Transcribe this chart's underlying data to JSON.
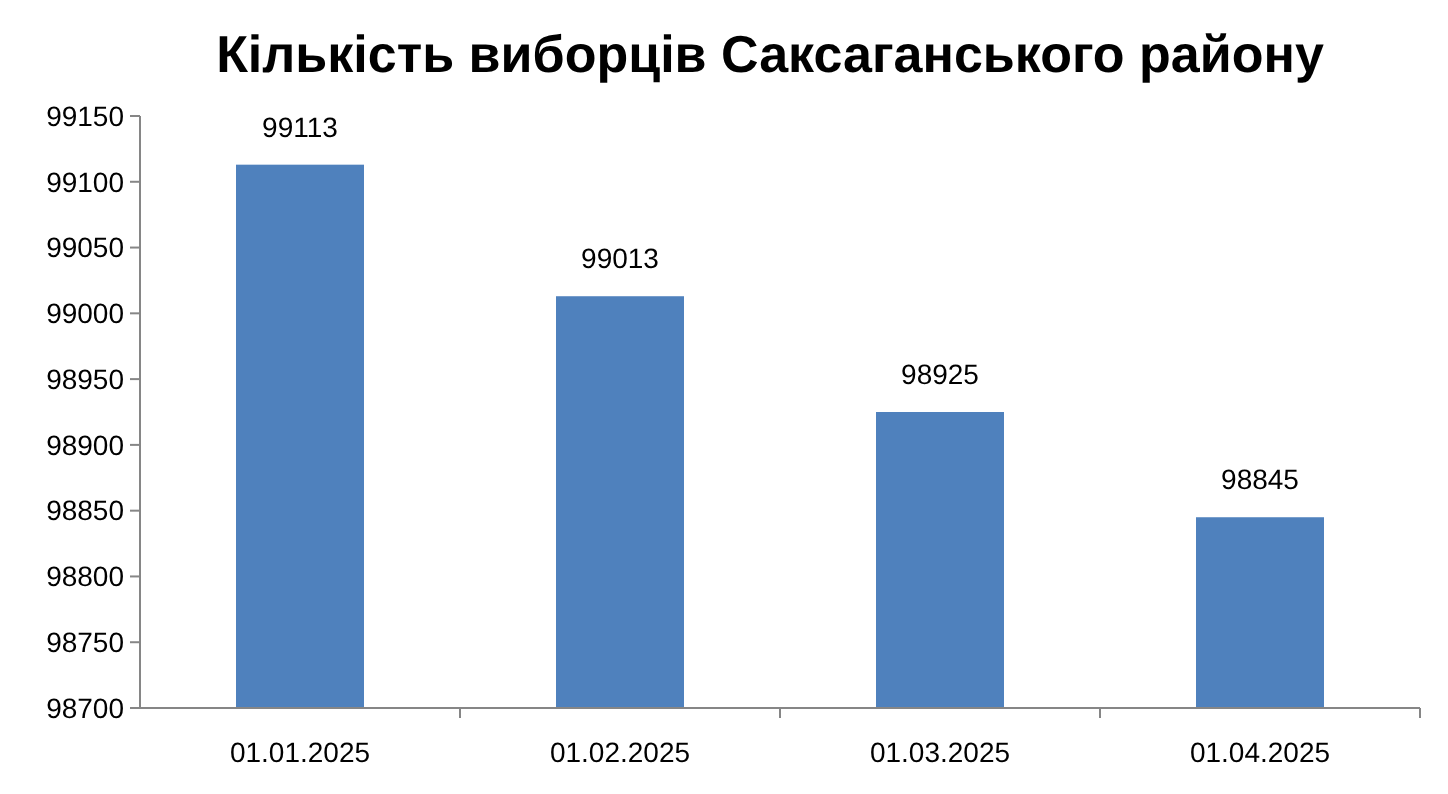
{
  "chart_data": {
    "type": "bar",
    "title": "Кількість виборців Саксаганського району",
    "categories": [
      "01.01.2025",
      "01.02.2025",
      "01.03.2025",
      "01.04.2025"
    ],
    "values": [
      99113,
      99013,
      98925,
      98845
    ],
    "color": "#4f81bd",
    "ylim": [
      98700,
      99150
    ],
    "yticks": [
      98700,
      98750,
      98800,
      98850,
      98900,
      98950,
      99000,
      99050,
      99100,
      99150
    ],
    "grid": false,
    "data_labels": true
  }
}
